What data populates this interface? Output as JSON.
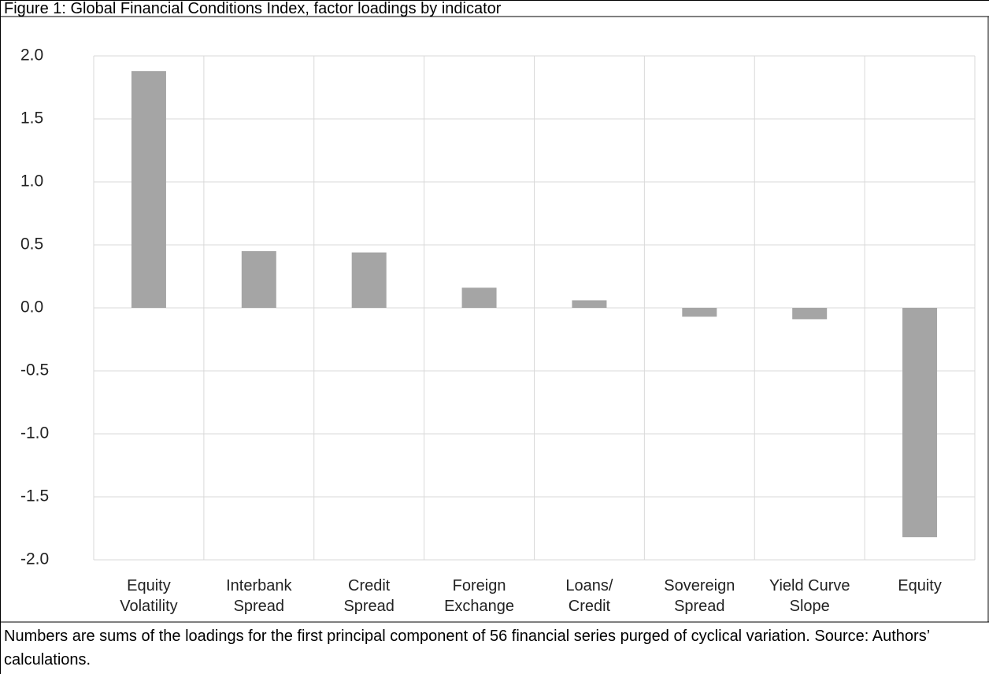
{
  "chart_data": {
    "type": "bar",
    "title": "Figure 1: Global Financial Conditions Index, factor loadings by indicator",
    "categories": [
      "Equity\nVolatility",
      "Interbank\nSpread",
      "Credit\nSpread",
      "Foreign\nExchange",
      "Loans/\nCredit",
      "Sovereign\nSpread",
      "Yield Curve\nSlope",
      "Equity"
    ],
    "values": [
      1.88,
      0.45,
      0.44,
      0.16,
      0.06,
      -0.07,
      -0.09,
      -1.82
    ],
    "color": "#a5a5a5",
    "ylim": [
      -2,
      2
    ],
    "yticks": [
      {
        "value": -2,
        "label": "-2.0"
      },
      -1.5,
      {
        "value": -1,
        "label": "-1.0"
      },
      -0.5,
      {
        "value": 0,
        "label": "0.0"
      },
      0.5,
      {
        "value": 1,
        "label": "1.0"
      },
      1.5,
      {
        "value": 2,
        "label": "2.0"
      }
    ],
    "grid": true,
    "note": "Numbers are sums of the loadings for the first principal component of 56 financial series purged of cyclical variation. Source: Authors’ calculations."
  }
}
